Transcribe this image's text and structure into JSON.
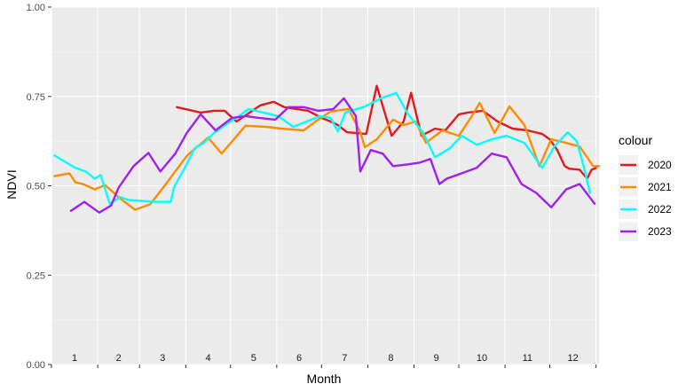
{
  "chart_data": {
    "type": "line",
    "xlabel": "Month",
    "ylabel": "NDVI",
    "ylim": [
      0,
      1
    ],
    "y_ticks": [
      "0.00",
      "0.25",
      "0.50",
      "0.75",
      "1.00"
    ],
    "xlim": [
      1,
      368
    ],
    "month_labels": [
      "1",
      "2",
      "3",
      "4",
      "5",
      "6",
      "7",
      "8",
      "9",
      "10",
      "11",
      "12"
    ],
    "legend_title": "colour",
    "legend_position": "right",
    "grid": true,
    "colors": {
      "2020": "#e31a1c",
      "2021": "#ff8c00",
      "2022": "#00ffff",
      "2023": "#a020f0"
    },
    "series": [
      {
        "name": "2020",
        "x": [
          85,
          101,
          110,
          117,
          125,
          141,
          150,
          157,
          173,
          182,
          188,
          193,
          199,
          212,
          219,
          229,
          237,
          242,
          249,
          258,
          265,
          274,
          280,
          290,
          300,
          310,
          320,
          330,
          335,
          340,
          345,
          348,
          355,
          360,
          363,
          366
        ],
        "y": [
          0.72,
          0.705,
          0.71,
          0.71,
          0.68,
          0.725,
          0.735,
          0.72,
          0.71,
          0.69,
          0.68,
          0.67,
          0.65,
          0.645,
          0.78,
          0.64,
          0.68,
          0.76,
          0.64,
          0.66,
          0.655,
          0.7,
          0.705,
          0.71,
          0.68,
          0.66,
          0.655,
          0.645,
          0.63,
          0.6,
          0.555,
          0.548,
          0.545,
          0.52,
          0.545,
          0.55
        ]
      },
      {
        "name": "2021",
        "x": [
          3,
          13,
          17,
          22,
          30,
          37,
          46,
          57,
          67,
          75,
          92,
          106,
          115,
          131,
          145,
          155,
          170,
          178,
          188,
          200,
          208,
          211,
          219,
          230,
          237,
          245,
          252,
          263,
          274,
          282,
          288,
          298,
          308,
          318,
          328,
          336,
          346,
          355,
          360,
          364,
          368
        ],
        "y": [
          0.527,
          0.535,
          0.51,
          0.505,
          0.49,
          0.502,
          0.468,
          0.433,
          0.448,
          0.49,
          0.585,
          0.635,
          0.59,
          0.668,
          0.665,
          0.66,
          0.655,
          0.68,
          0.708,
          0.715,
          0.65,
          0.608,
          0.63,
          0.685,
          0.67,
          0.68,
          0.62,
          0.655,
          0.64,
          0.69,
          0.732,
          0.648,
          0.722,
          0.67,
          0.555,
          0.63,
          0.62,
          0.61,
          0.58,
          0.555,
          0.555
        ]
      },
      {
        "name": "2022",
        "x": [
          3,
          11,
          17,
          24,
          30,
          34,
          40,
          47,
          53,
          61,
          70,
          81,
          83,
          91,
          97,
          103,
          110,
          119,
          125,
          133,
          143,
          153,
          163,
          172,
          181,
          188,
          193,
          198,
          210,
          222,
          232,
          240,
          250,
          258,
          268,
          276,
          286,
          296,
          306,
          318,
          330,
          338,
          347,
          353,
          358,
          362
        ],
        "y": [
          0.585,
          0.565,
          0.55,
          0.54,
          0.52,
          0.53,
          0.45,
          0.468,
          0.46,
          0.458,
          0.455,
          0.455,
          0.495,
          0.555,
          0.605,
          0.62,
          0.648,
          0.675,
          0.69,
          0.715,
          0.705,
          0.695,
          0.665,
          0.68,
          0.695,
          0.69,
          0.652,
          0.705,
          0.72,
          0.745,
          0.76,
          0.7,
          0.65,
          0.58,
          0.605,
          0.64,
          0.615,
          0.63,
          0.64,
          0.62,
          0.55,
          0.61,
          0.65,
          0.625,
          0.55,
          0.48
        ]
      },
      {
        "name": "2023",
        "x": [
          14,
          23,
          33,
          41,
          46,
          56,
          66,
          74,
          84,
          92,
          101,
          111,
          122,
          131,
          140,
          151,
          160,
          170,
          180,
          190,
          197,
          205,
          208,
          215,
          223,
          230,
          240,
          248,
          255,
          261,
          266,
          276,
          286,
          296,
          306,
          316,
          326,
          336,
          346,
          355,
          365
        ],
        "y": [
          0.43,
          0.455,
          0.425,
          0.445,
          0.495,
          0.555,
          0.592,
          0.54,
          0.59,
          0.65,
          0.7,
          0.655,
          0.69,
          0.695,
          0.69,
          0.685,
          0.72,
          0.72,
          0.71,
          0.715,
          0.745,
          0.695,
          0.54,
          0.6,
          0.59,
          0.555,
          0.56,
          0.565,
          0.575,
          0.505,
          0.52,
          0.535,
          0.55,
          0.59,
          0.58,
          0.505,
          0.48,
          0.44,
          0.49,
          0.505,
          0.45
        ]
      }
    ]
  }
}
